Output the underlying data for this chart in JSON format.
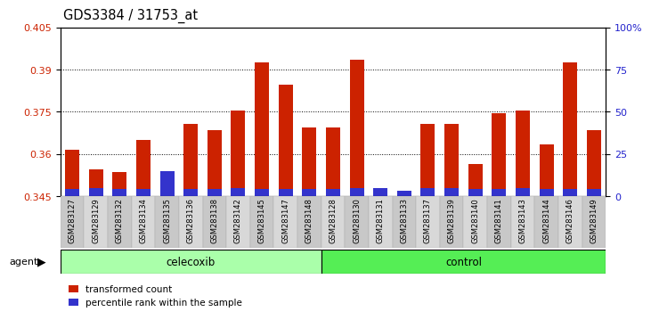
{
  "title": "GDS3384 / 31753_at",
  "samples": [
    "GSM283127",
    "GSM283129",
    "GSM283132",
    "GSM283134",
    "GSM283135",
    "GSM283136",
    "GSM283138",
    "GSM283142",
    "GSM283145",
    "GSM283147",
    "GSM283148",
    "GSM283128",
    "GSM283130",
    "GSM283131",
    "GSM283133",
    "GSM283137",
    "GSM283139",
    "GSM283140",
    "GSM283141",
    "GSM283143",
    "GSM283144",
    "GSM283146",
    "GSM283149"
  ],
  "red_values": [
    0.3615,
    0.3545,
    0.3535,
    0.365,
    0.3455,
    0.3705,
    0.3685,
    0.3755,
    0.3925,
    0.3845,
    0.3695,
    0.3695,
    0.3935,
    0.3455,
    0.3465,
    0.3705,
    0.3705,
    0.3565,
    0.3745,
    0.3755,
    0.3635,
    0.3925,
    0.3685
  ],
  "blue_percentiles": [
    4,
    5,
    4,
    4,
    15,
    4,
    4,
    5,
    4,
    4,
    4,
    4,
    5,
    5,
    3,
    5,
    5,
    4,
    4,
    5,
    4,
    4,
    4
  ],
  "celecoxib_count": 11,
  "control_count": 12,
  "ylim_left": [
    0.345,
    0.405
  ],
  "ylim_right": [
    0,
    100
  ],
  "yticks_left": [
    0.345,
    0.36,
    0.375,
    0.39,
    0.405
  ],
  "ytick_labels_left": [
    "0.345",
    "0.36",
    "0.375",
    "0.39",
    "0.405"
  ],
  "yticks_right": [
    0,
    25,
    50,
    75,
    100
  ],
  "ytick_labels_right": [
    "0",
    "25",
    "50",
    "75",
    "100%"
  ],
  "bar_color_red": "#cc2200",
  "bar_color_blue": "#3333cc",
  "celecoxib_color": "#aaffaa",
  "control_color": "#55ee55",
  "agent_label": "agent",
  "celecoxib_label": "celecoxib",
  "control_label": "control",
  "legend_red": "transformed count",
  "legend_blue": "percentile rank within the sample",
  "bg_color": "#ffffff",
  "plot_bg": "#ffffff",
  "title_color": "#000000",
  "left_tick_color": "#cc2200",
  "right_tick_color": "#2222cc",
  "xticklabel_bg": "#cccccc"
}
